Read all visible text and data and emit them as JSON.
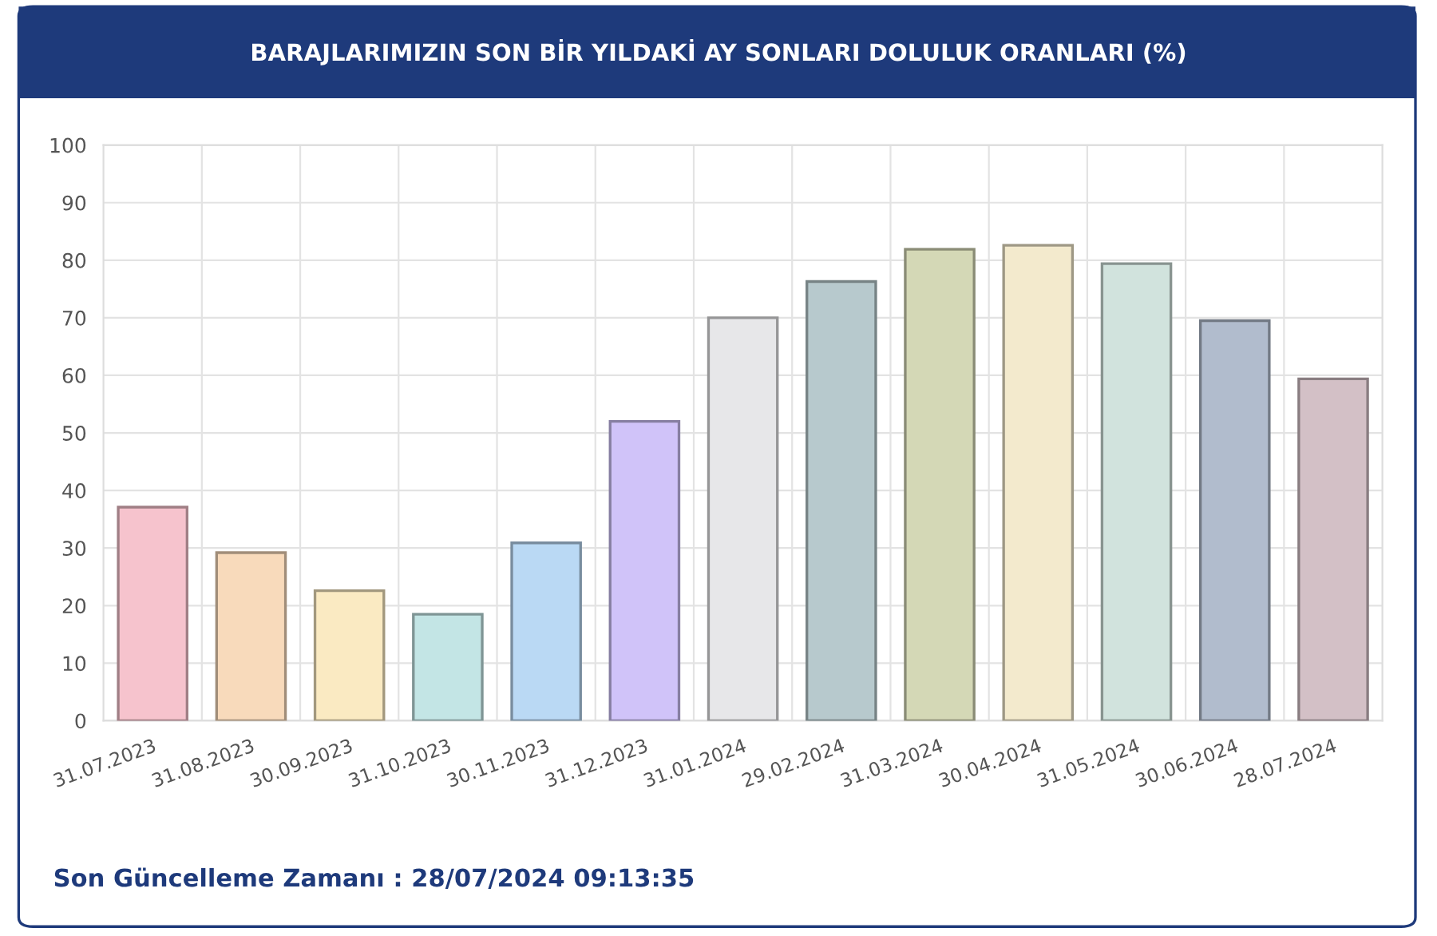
{
  "chart_data": {
    "type": "bar",
    "title": "BARAJLARIMIZIN SON BİR YILDAKİ AY SONLARI DOLULUK ORANLARI (%)",
    "categories": [
      "31.07.2023",
      "31.08.2023",
      "30.09.2023",
      "31.10.2023",
      "30.11.2023",
      "31.12.2023",
      "31.01.2024",
      "29.02.2024",
      "31.03.2024",
      "30.04.2024",
      "31.05.2024",
      "30.06.2024",
      "28.07.2024"
    ],
    "values": [
      37.1,
      29.2,
      22.6,
      18.5,
      30.9,
      52.0,
      70.0,
      76.3,
      81.9,
      82.6,
      79.4,
      69.5,
      59.4
    ],
    "colors": [
      "#f6c3cd",
      "#f8dabb",
      "#faeac2",
      "#c3e5e5",
      "#bad9f4",
      "#d0c3f9",
      "#e7e7e9",
      "#b7c9cd",
      "#d4d8b6",
      "#f3eacd",
      "#d1e3dd",
      "#b1bccd",
      "#d3c0c6"
    ],
    "ylim": [
      0,
      100
    ],
    "yticks": [
      0,
      10,
      20,
      30,
      40,
      50,
      60,
      70,
      80,
      90,
      100
    ],
    "grid": true,
    "annotations": [
      "Son Güncelleme Zamanı : 28/07/2024 09:13:35"
    ]
  }
}
